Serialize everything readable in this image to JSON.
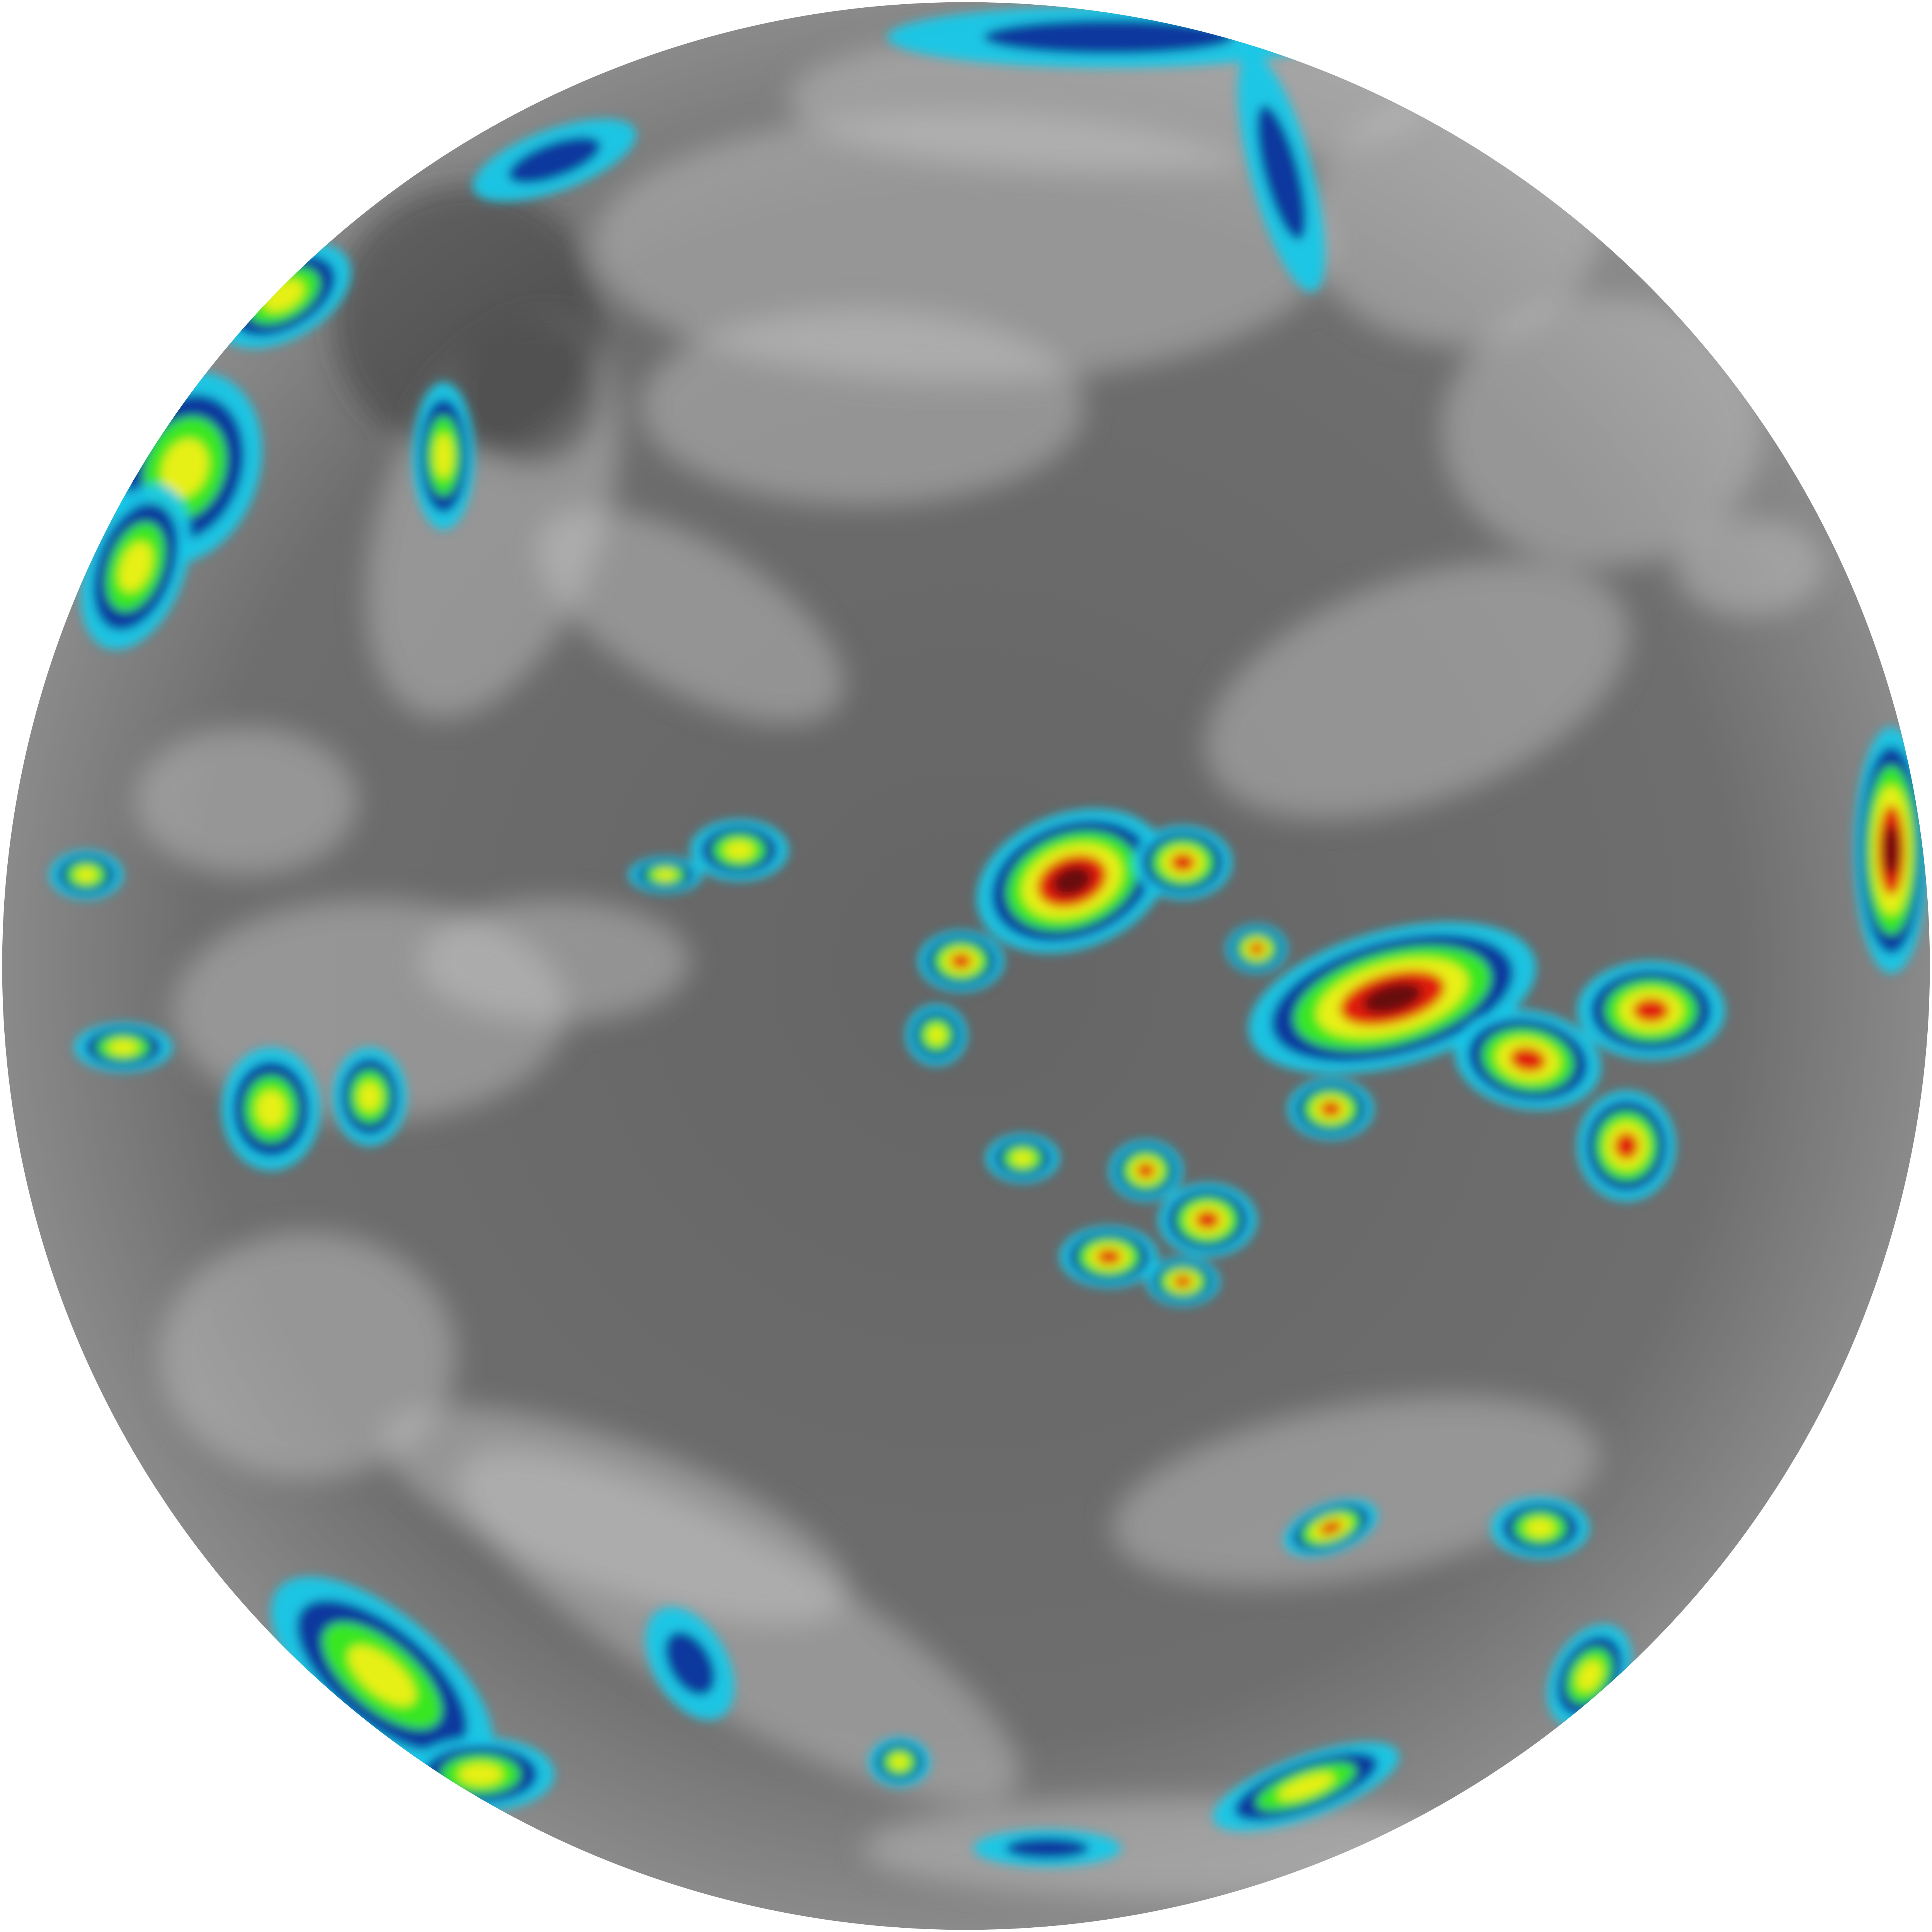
{
  "image": {
    "kind": "full-disk infrared satellite view of Earth (enhanced colour scale)",
    "background": "#ffffff",
    "palette": {
      "ocean_gray": "#6b6b6b",
      "cloud_light": "#c8c8c8",
      "cold_cyan": "#18c8e8",
      "cold_blue": "#0a2f9a",
      "green": "#3cf01a",
      "yellow": "#f0f018",
      "red": "#e01010",
      "deep_red": "#600808"
    }
  }
}
